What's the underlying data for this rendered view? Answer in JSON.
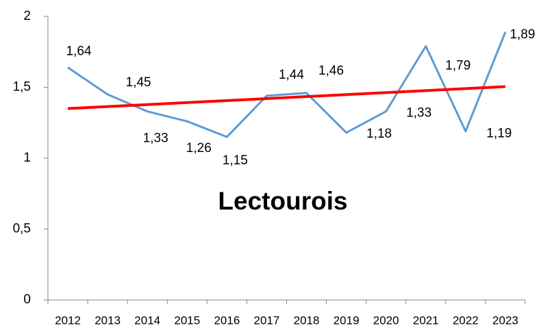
{
  "chart_data": {
    "type": "line",
    "title": "Lectourois",
    "categories": [
      "2012",
      "2013",
      "2014",
      "2015",
      "2016",
      "2017",
      "2018",
      "2019",
      "2020",
      "2021",
      "2022",
      "2023"
    ],
    "series": [
      {
        "color": "#5b9bd5",
        "values": [
          1.64,
          1.45,
          1.33,
          1.26,
          1.15,
          1.44,
          1.46,
          1.18,
          1.33,
          1.79,
          1.19,
          1.89
        ],
        "value_labels": [
          "1,64",
          "1,45",
          "1,33",
          "1,26",
          "1,15",
          "1,44",
          "1,46",
          "1,18",
          "1,33",
          "1,79",
          "1,19",
          "1,89"
        ]
      }
    ],
    "trend_line": {
      "color": "#ff0000",
      "start": 1.35,
      "end": 1.505
    },
    "ylim": [
      0,
      2
    ],
    "yticks": [
      0,
      {
        "value": 0.5,
        "label": "0,5"
      },
      1,
      {
        "value": 1.5,
        "label": "1,5"
      },
      2
    ],
    "grid": false
  }
}
